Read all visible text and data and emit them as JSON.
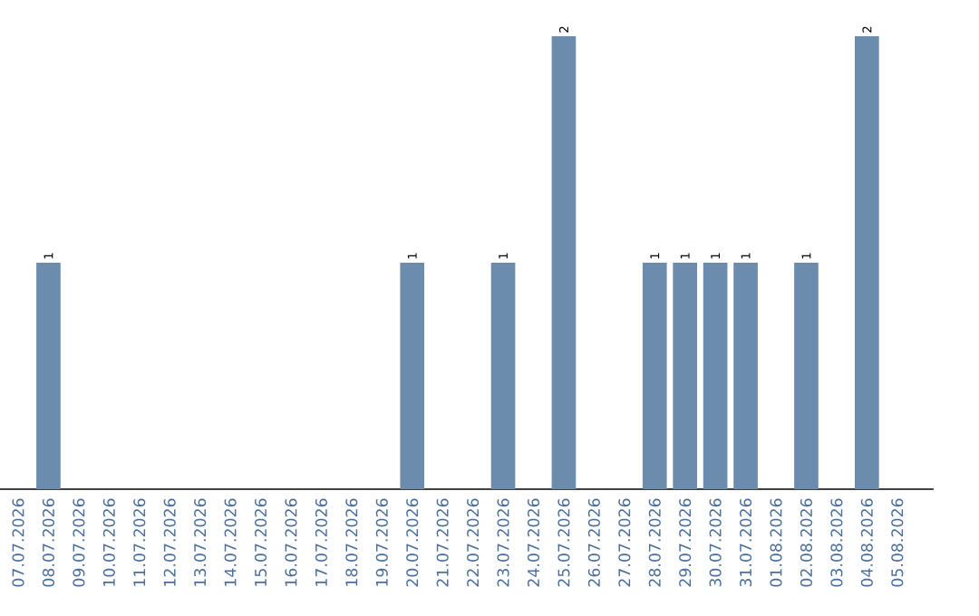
{
  "chart_data": {
    "type": "bar",
    "categories": [
      "07.07.2026",
      "08.07.2026",
      "09.07.2026",
      "10.07.2026",
      "11.07.2026",
      "12.07.2026",
      "13.07.2026",
      "14.07.2026",
      "15.07.2026",
      "16.07.2026",
      "17.07.2026",
      "18.07.2026",
      "19.07.2026",
      "20.07.2026",
      "21.07.2026",
      "22.07.2026",
      "23.07.2026",
      "24.07.2026",
      "25.07.2026",
      "26.07.2026",
      "27.07.2026",
      "28.07.2026",
      "29.07.2026",
      "30.07.2026",
      "31.07.2026",
      "01.08.2026",
      "02.08.2026",
      "03.08.2026",
      "04.08.2026",
      "05.08.2026"
    ],
    "values": [
      0,
      1,
      0,
      0,
      0,
      0,
      0,
      0,
      0,
      0,
      0,
      0,
      0,
      1,
      0,
      0,
      1,
      0,
      2,
      0,
      0,
      1,
      1,
      1,
      1,
      0,
      1,
      0,
      2,
      0
    ],
    "value_labels": [
      null,
      "1",
      null,
      null,
      null,
      null,
      null,
      null,
      null,
      null,
      null,
      null,
      null,
      "1",
      null,
      null,
      "1",
      null,
      "2",
      null,
      null,
      "1",
      "1",
      "1",
      "1",
      null,
      "1",
      null,
      "2",
      null
    ],
    "color": "#6b8cad",
    "tick_labels": "x"
  }
}
